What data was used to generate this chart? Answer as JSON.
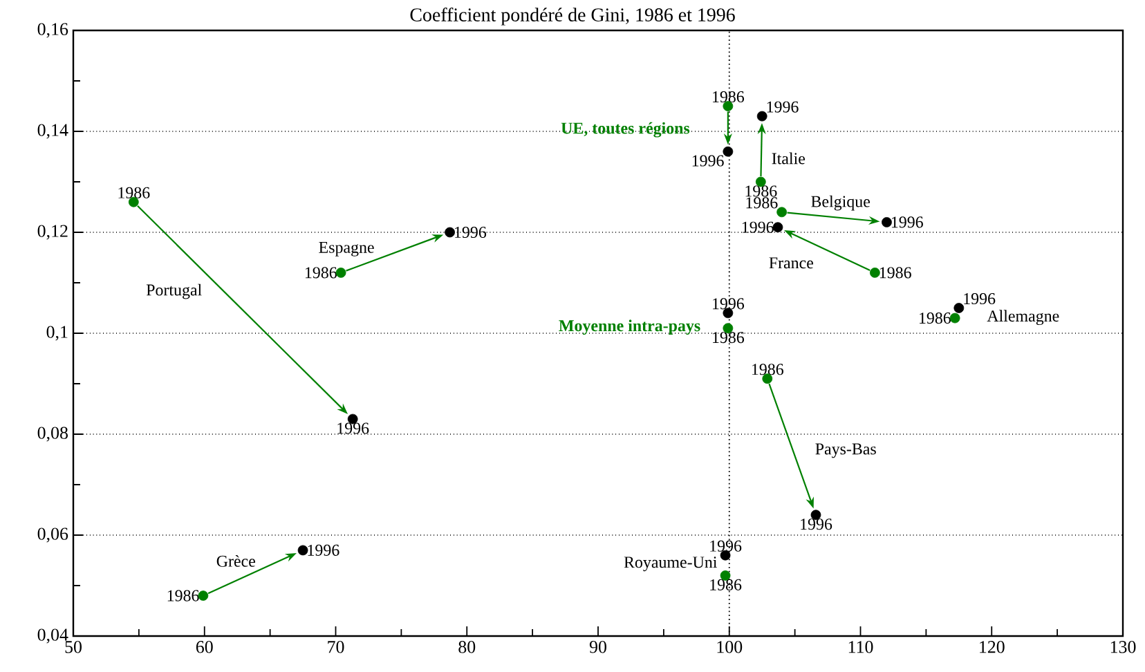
{
  "chart_data": {
    "type": "scatter",
    "title": "Coefficient pondéré de Gini, 1986 et 1996",
    "series": [
      {
        "color": "#008000",
        "x": [
          54.6,
          70.4,
          59.9,
          99.9,
          102.4,
          104.0,
          111.1,
          117.2,
          99.9,
          102.9,
          99.7
        ],
        "values": [
          0.126,
          0.112,
          0.048,
          0.145,
          0.13,
          0.124,
          0.112,
          0.103,
          0.101,
          0.091,
          0.052
        ]
      },
      {
        "color": "#000000",
        "x": [
          71.3,
          78.7,
          67.5,
          99.9,
          102.5,
          112.0,
          103.7,
          117.5,
          99.9,
          106.6,
          99.7
        ],
        "values": [
          0.083,
          0.12,
          0.057,
          0.136,
          0.143,
          0.122,
          0.121,
          0.105,
          0.104,
          0.064,
          0.056
        ]
      }
    ],
    "annotations": [
      {
        "text": "1986",
        "x": 54.6,
        "y": 0.126
      },
      {
        "text": "1986",
        "x": 70.4,
        "y": 0.112
      },
      {
        "text": "1986",
        "x": 59.9,
        "y": 0.048
      },
      {
        "text": "1986",
        "x": 99.9,
        "y": 0.145
      },
      {
        "text": "1986",
        "x": 102.4,
        "y": 0.13
      },
      {
        "text": "1986",
        "x": 104.0,
        "y": 0.124
      },
      {
        "text": "1986",
        "x": 111.1,
        "y": 0.112
      },
      {
        "text": "1986",
        "x": 117.2,
        "y": 0.103
      },
      {
        "text": "1986",
        "x": 99.9,
        "y": 0.101
      },
      {
        "text": "1986",
        "x": 102.9,
        "y": 0.091
      },
      {
        "text": "1986",
        "x": 99.7,
        "y": 0.052
      },
      {
        "text": "1996",
        "x": 71.3,
        "y": 0.083
      },
      {
        "text": "1996",
        "x": 78.7,
        "y": 0.12
      },
      {
        "text": "1996",
        "x": 67.5,
        "y": 0.057
      },
      {
        "text": "1996",
        "x": 99.9,
        "y": 0.136
      },
      {
        "text": "1996",
        "x": 102.5,
        "y": 0.143
      },
      {
        "text": "1996",
        "x": 112.0,
        "y": 0.122
      },
      {
        "text": "1996",
        "x": 103.7,
        "y": 0.121
      },
      {
        "text": "1996",
        "x": 117.5,
        "y": 0.105
      },
      {
        "text": "1996",
        "x": 99.9,
        "y": 0.104
      },
      {
        "text": "1996",
        "x": 106.6,
        "y": 0.064
      },
      {
        "text": "1996",
        "x": 99.7,
        "y": 0.056
      },
      "Portugal",
      {
        "text": "Espagne",
        "x": 70.4,
        "y": 0.112
      },
      "Grèce",
      "UE, toutes régions",
      {
        "text": "Italie",
        "x": 102.4,
        "y": 0.13
      },
      "Belgique",
      "France",
      "Allemagne",
      "Moyenne intra-pays",
      "Pays-Bas",
      "Royaume-Uni"
    ],
    "xlim": [
      50,
      130
    ],
    "xticks": [
      50,
      {
        "value": 55,
        "label": null
      },
      60,
      {
        "value": 65,
        "label": null
      },
      70,
      {
        "value": 75,
        "label": null
      },
      80,
      {
        "value": 85,
        "label": null
      },
      90,
      {
        "value": 95,
        "label": null
      },
      100,
      {
        "value": 105,
        "label": null
      },
      110,
      {
        "value": 115,
        "label": null
      },
      120,
      {
        "value": 125,
        "label": null
      },
      130
    ],
    "ylim": [
      0.04,
      0.16
    ],
    "yticks": [
      {
        "value": 0.04,
        "label": "0,04"
      },
      {
        "value": 0.05,
        "label": null
      },
      {
        "value": 0.06,
        "label": "0,06"
      },
      {
        "value": 0.07,
        "label": null
      },
      {
        "value": 0.08,
        "label": "0,08"
      },
      {
        "value": 0.09,
        "label": null
      },
      {
        "value": 0.1,
        "label": "0,1"
      },
      {
        "value": 0.11,
        "label": null
      },
      {
        "value": 0.12,
        "label": "0,12"
      },
      {
        "value": 0.13,
        "label": null
      },
      {
        "value": 0.14,
        "label": "0,14"
      },
      {
        "value": 0.15,
        "label": null
      },
      {
        "value": 0.16,
        "label": "0,16"
      }
    ],
    "grid": "y",
    "ref_lines": [
      {
        "axis": "x",
        "value": 100,
        "line_style": "dotted"
      }
    ],
    "marker": "circle"
  }
}
